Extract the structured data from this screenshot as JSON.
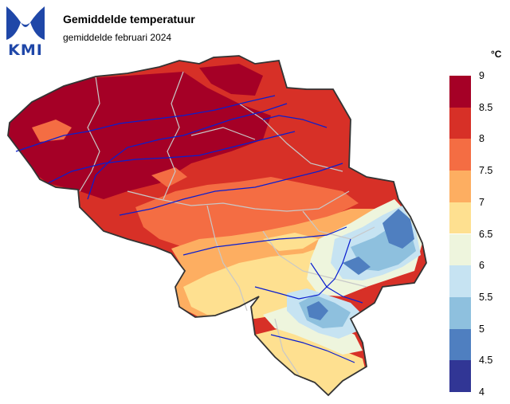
{
  "header": {
    "logo_text": "KMI",
    "title": "Gemiddelde temperatuur",
    "subtitle": "gemiddelde februari 2024"
  },
  "legend": {
    "unit": "°C",
    "labels": [
      "9",
      "8.5",
      "8",
      "7.5",
      "7",
      "6.5",
      "6",
      "5.5",
      "5",
      "4.5",
      "4"
    ],
    "bins": [
      {
        "range": "8.5–9",
        "color": "#a50026"
      },
      {
        "range": "8–8.5",
        "color": "#d73027"
      },
      {
        "range": "7.5–8",
        "color": "#f46d43"
      },
      {
        "range": "7–7.5",
        "color": "#fdae61"
      },
      {
        "range": "6.5–7",
        "color": "#fee090"
      },
      {
        "range": "6–6.5",
        "color": "#eef5dd"
      },
      {
        "range": "5.5–6",
        "color": "#c6e3f2"
      },
      {
        "range": "5–5.5",
        "color": "#8ec0de"
      },
      {
        "range": "4.5–5",
        "color": "#4f7fc0"
      },
      {
        "range": "4–4.5",
        "color": "#313695"
      }
    ]
  },
  "colors": {
    "border": "#333333",
    "rivers": "#0a1ecf",
    "provinces": "#c8c8c8",
    "logo_blue": "#1f47a8"
  }
}
